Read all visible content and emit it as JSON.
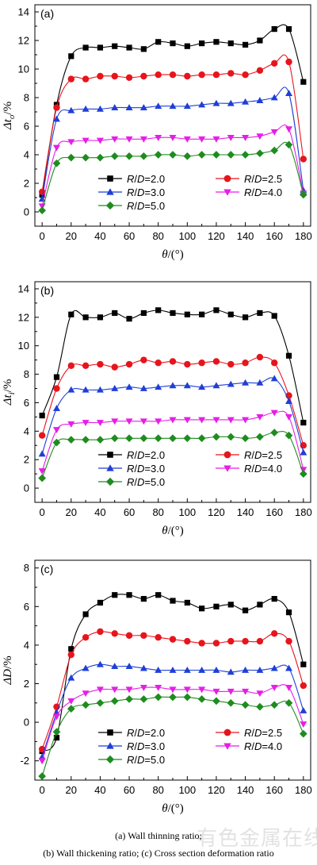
{
  "caption": {
    "line1": "(a) Wall thinning ratio;",
    "line2": "(b) Wall thickening ratio; (c) Cross section deformation ratio"
  },
  "watermark": "有色金属在线",
  "colors": {
    "R/D=2.0": "#000000",
    "R/D=2.5": "#e8141c",
    "R/D=3.0": "#1f3fd6",
    "R/D=4.0": "#e61ee6",
    "R/D=5.0": "#1e8c1e"
  },
  "chart_data": [
    {
      "type": "line",
      "panel_label": "(a)",
      "xlabel": "θ/(°)",
      "ylabel": "Δt_o/%",
      "ylabel_main": "Δt",
      "ylabel_sub": "o",
      "ylabel_unit": "/%",
      "xlim": [
        -5,
        185
      ],
      "ylim": [
        -1,
        14.5
      ],
      "xticks": [
        0,
        20,
        40,
        60,
        80,
        100,
        120,
        140,
        160,
        180
      ],
      "yticks": [
        0,
        2,
        4,
        6,
        8,
        10,
        12,
        14
      ],
      "legend_position": "lower-center",
      "x": [
        0,
        10,
        20,
        30,
        40,
        50,
        60,
        70,
        80,
        90,
        100,
        110,
        120,
        130,
        140,
        150,
        160,
        170,
        180
      ],
      "series": [
        {
          "name": "R/D=2.0",
          "marker": "square",
          "values": [
            1.2,
            7.5,
            10.9,
            11.5,
            11.5,
            11.6,
            11.5,
            11.4,
            11.9,
            11.8,
            11.6,
            11.8,
            11.9,
            11.8,
            11.7,
            12.0,
            12.8,
            12.8,
            9.1
          ]
        },
        {
          "name": "R/D=2.5",
          "marker": "circle",
          "values": [
            1.4,
            7.3,
            9.3,
            9.3,
            9.5,
            9.5,
            9.4,
            9.5,
            9.6,
            9.6,
            9.5,
            9.6,
            9.6,
            9.7,
            9.6,
            9.9,
            10.4,
            10.5,
            3.7
          ]
        },
        {
          "name": "R/D=3.0",
          "marker": "triangle-up",
          "values": [
            0.9,
            6.5,
            7.1,
            7.2,
            7.2,
            7.3,
            7.3,
            7.3,
            7.4,
            7.4,
            7.4,
            7.5,
            7.6,
            7.6,
            7.7,
            7.8,
            8.0,
            8.3,
            1.5
          ]
        },
        {
          "name": "R/D=4.0",
          "marker": "triangle-down",
          "values": [
            0.4,
            4.5,
            4.9,
            5.0,
            5.0,
            5.1,
            5.1,
            5.1,
            5.2,
            5.2,
            5.1,
            5.1,
            5.1,
            5.2,
            5.2,
            5.3,
            5.6,
            5.8,
            1.3
          ]
        },
        {
          "name": "R/D=5.0",
          "marker": "diamond",
          "values": [
            0.1,
            3.4,
            3.8,
            3.8,
            3.8,
            3.9,
            3.9,
            3.9,
            4.0,
            4.0,
            3.9,
            4.0,
            4.0,
            4.0,
            4.0,
            4.1,
            4.3,
            4.7,
            1.2
          ]
        }
      ]
    },
    {
      "type": "line",
      "panel_label": "(b)",
      "xlabel": "θ/(°)",
      "ylabel": "Δt_i/%",
      "ylabel_main": "Δt",
      "ylabel_sub": "i",
      "ylabel_unit": "/%",
      "xlim": [
        -5,
        185
      ],
      "ylim": [
        -1,
        14.5
      ],
      "xticks": [
        0,
        20,
        40,
        60,
        80,
        100,
        120,
        140,
        160,
        180
      ],
      "yticks": [
        0,
        2,
        4,
        6,
        8,
        10,
        12,
        14
      ],
      "legend_position": "lower-center",
      "x": [
        0,
        10,
        20,
        30,
        40,
        50,
        60,
        70,
        80,
        90,
        100,
        110,
        120,
        130,
        140,
        150,
        160,
        170,
        180
      ],
      "series": [
        {
          "name": "R/D=2.0",
          "marker": "square",
          "values": [
            5.1,
            7.8,
            12.2,
            12.0,
            12.0,
            12.3,
            11.9,
            12.3,
            12.5,
            12.3,
            12.2,
            12.2,
            12.5,
            12.2,
            12.0,
            12.3,
            12.1,
            9.3,
            4.6
          ]
        },
        {
          "name": "R/D=2.5",
          "marker": "circle",
          "values": [
            3.7,
            7.0,
            8.6,
            8.6,
            8.7,
            8.5,
            8.7,
            9.0,
            8.8,
            8.9,
            8.7,
            8.8,
            8.9,
            8.7,
            8.8,
            9.2,
            8.8,
            6.5,
            3.0
          ]
        },
        {
          "name": "R/D=3.0",
          "marker": "triangle-up",
          "values": [
            2.4,
            5.6,
            6.9,
            6.9,
            6.9,
            7.0,
            7.1,
            7.0,
            7.1,
            7.2,
            7.2,
            7.1,
            7.2,
            7.3,
            7.4,
            7.4,
            7.7,
            6.1,
            2.5
          ]
        },
        {
          "name": "R/D=4.0",
          "marker": "triangle-down",
          "values": [
            1.2,
            4.1,
            4.5,
            4.6,
            4.6,
            4.7,
            4.7,
            4.7,
            4.7,
            4.8,
            4.8,
            4.8,
            4.8,
            4.8,
            4.8,
            5.0,
            5.3,
            5.0,
            1.3
          ]
        },
        {
          "name": "R/D=5.0",
          "marker": "diamond",
          "values": [
            0.7,
            3.2,
            3.4,
            3.4,
            3.4,
            3.5,
            3.5,
            3.5,
            3.5,
            3.5,
            3.5,
            3.5,
            3.6,
            3.6,
            3.5,
            3.6,
            3.9,
            3.7,
            1.0
          ]
        }
      ]
    },
    {
      "type": "line",
      "panel_label": "(c)",
      "xlabel": "θ/(°)",
      "ylabel": "ΔD/%",
      "ylabel_main": "ΔD",
      "ylabel_sub": "",
      "ylabel_unit": "/%",
      "xlim": [
        -5,
        185
      ],
      "ylim": [
        -3,
        8.4
      ],
      "xticks": [
        0,
        20,
        40,
        60,
        80,
        100,
        120,
        140,
        160,
        180
      ],
      "yticks": [
        -2,
        0,
        2,
        4,
        6,
        8
      ],
      "legend_position": "lower-center",
      "x": [
        0,
        10,
        20,
        30,
        40,
        50,
        60,
        70,
        80,
        90,
        100,
        110,
        120,
        130,
        140,
        150,
        160,
        170,
        180
      ],
      "series": [
        {
          "name": "R/D=2.0",
          "marker": "square",
          "values": [
            -1.5,
            -0.8,
            3.8,
            5.6,
            6.2,
            6.6,
            6.6,
            6.4,
            6.6,
            6.3,
            6.2,
            5.9,
            6.0,
            6.1,
            5.8,
            6.1,
            6.4,
            5.7,
            3.0
          ]
        },
        {
          "name": "R/D=2.5",
          "marker": "circle",
          "values": [
            -1.4,
            0.8,
            3.5,
            4.4,
            4.7,
            4.6,
            4.5,
            4.5,
            4.4,
            4.3,
            4.2,
            4.1,
            4.1,
            4.2,
            4.2,
            4.2,
            4.6,
            4.2,
            1.9
          ]
        },
        {
          "name": "R/D=3.0",
          "marker": "triangle-up",
          "values": [
            -1.8,
            0.5,
            2.3,
            2.8,
            3.0,
            2.9,
            2.9,
            2.8,
            2.7,
            2.7,
            2.7,
            2.7,
            2.7,
            2.6,
            2.7,
            2.7,
            2.8,
            2.8,
            0.6
          ]
        },
        {
          "name": "R/D=4.0",
          "marker": "triangle-down",
          "values": [
            -2.0,
            0.3,
            1.1,
            1.5,
            1.7,
            1.7,
            1.7,
            1.8,
            1.8,
            1.7,
            1.7,
            1.7,
            1.6,
            1.6,
            1.6,
            1.5,
            1.8,
            1.8,
            -0.1
          ]
        },
        {
          "name": "R/D=5.0",
          "marker": "diamond",
          "values": [
            -2.8,
            -0.5,
            0.7,
            0.9,
            1.0,
            1.1,
            1.2,
            1.2,
            1.3,
            1.3,
            1.3,
            1.2,
            1.1,
            1.0,
            0.9,
            0.8,
            0.9,
            1.0,
            -0.6
          ]
        }
      ]
    }
  ]
}
